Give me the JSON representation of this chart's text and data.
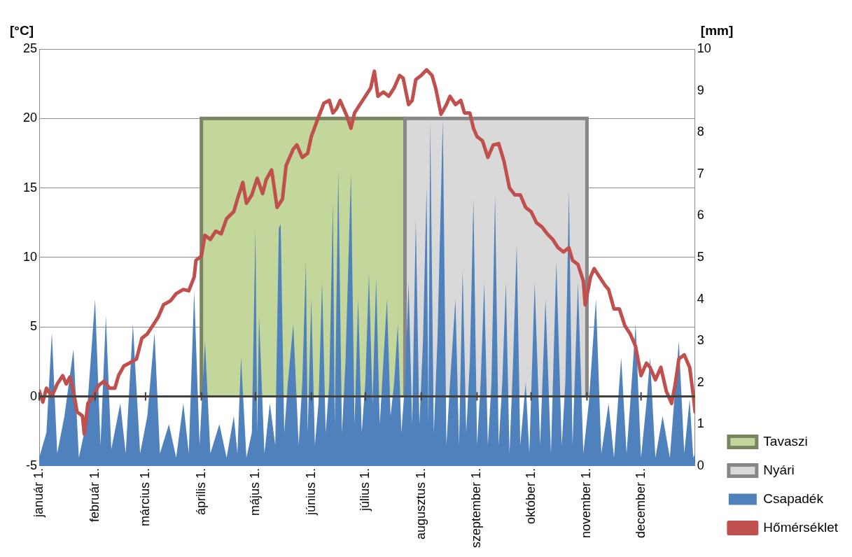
{
  "chart_data": {
    "type": "line",
    "ylabel": "[°C]",
    "y2label": "[mm]",
    "xlim": [
      "--01-01",
      "--12-31"
    ],
    "xticks": [
      {
        "value": "--01-01",
        "label": "január 1."
      },
      {
        "value": "--02-01",
        "label": "február 1."
      },
      {
        "value": "--03-01",
        "label": "március 1."
      },
      {
        "value": "--04-01",
        "label": "április 1."
      },
      {
        "value": "--05-01",
        "label": "május 1."
      },
      {
        "value": "--06-01",
        "label": "június 1."
      },
      {
        "value": "--07-01",
        "label": "július 1."
      },
      {
        "value": "--08-01",
        "label": "augusztus 1."
      },
      {
        "value": "--09-01",
        "label": "szeptember 1."
      },
      {
        "value": "--10-01",
        "label": "október 1."
      },
      {
        "value": "--11-01",
        "label": "november 1."
      },
      {
        "value": "--12-01",
        "label": "december 1."
      }
    ],
    "ylim": [
      -5,
      25
    ],
    "yticks": [
      -5,
      0,
      5,
      10,
      15,
      20,
      25
    ],
    "y2lim": [
      0,
      10
    ],
    "y2ticks": [
      0,
      1,
      2,
      3,
      4,
      5,
      6,
      7,
      8,
      9,
      10
    ],
    "grid": "y",
    "legend": "bottom right",
    "ref_lines": [
      {
        "axis": "y",
        "value": 0,
        "color": "#404040"
      }
    ],
    "series": [
      {
        "name": "Tavaszi",
        "type": "area",
        "color": "#c3d69b",
        "x": [
          "--04-01",
          "--04-01",
          "--07-23",
          "--07-23"
        ],
        "values": [
          0,
          20,
          20,
          0
        ]
      },
      {
        "name": "Nyári",
        "type": "area",
        "color": "#d9d9d9",
        "x": [
          "--07-23",
          "--07-23",
          "--11-01",
          "--11-01"
        ],
        "values": [
          0,
          20,
          20,
          0
        ]
      },
      {
        "name": "Csapadék",
        "type": "area",
        "axis": "y2",
        "color": "#4f81bd",
        "x": [
          "--01-01",
          "--01-05",
          "--01-08",
          "--01-11",
          "--01-15",
          "--01-20",
          "--01-23",
          "--01-27",
          "--02-01",
          "--02-04",
          "--02-07",
          "--02-10",
          "--02-15",
          "--02-18",
          "--02-22",
          "--02-26",
          "--03-02",
          "--03-06",
          "--03-09",
          "--03-14",
          "--03-18",
          "--03-22",
          "--03-25",
          "--03-28",
          "--03-31",
          "--04-03",
          "--04-06",
          "--04-11",
          "--04-15",
          "--04-19",
          "--04-21",
          "--04-23",
          "--04-26",
          "--04-29",
          "--05-01",
          "--05-02",
          "--05-03",
          "--05-06",
          "--05-09",
          "--05-12",
          "--05-14",
          "--05-15",
          "--05-17",
          "--05-19",
          "--05-22",
          "--05-25",
          "--05-27",
          "--05-29",
          "--05-30",
          "--06-01",
          "--06-03",
          "--06-05",
          "--06-07",
          "--06-09",
          "--06-11",
          "--06-13",
          "--06-14",
          "--06-16",
          "--06-18",
          "--06-20",
          "--06-23",
          "--06-25",
          "--06-27",
          "--06-29",
          "--07-01",
          "--07-03",
          "--07-05",
          "--07-07",
          "--07-09",
          "--07-11",
          "--07-13",
          "--07-15",
          "--07-17",
          "--07-19",
          "--07-21",
          "--07-23",
          "--07-25",
          "--07-27",
          "--07-29",
          "--07-31",
          "--08-02",
          "--08-04",
          "--08-05",
          "--08-06",
          "--08-08",
          "--08-10",
          "--08-13",
          "--08-15",
          "--08-17",
          "--08-20",
          "--08-22",
          "--08-24",
          "--08-26",
          "--08-28",
          "--08-30",
          "--09-01",
          "--09-03",
          "--09-05",
          "--09-07",
          "--09-09",
          "--09-11",
          "--09-13",
          "--09-15",
          "--09-17",
          "--09-19",
          "--09-21",
          "--09-23",
          "--09-25",
          "--09-28",
          "--09-30",
          "--10-03",
          "--10-06",
          "--10-09",
          "--10-12",
          "--10-15",
          "--10-18",
          "--10-20",
          "--10-22",
          "--10-24",
          "--10-27",
          "--10-30",
          "--11-02",
          "--11-06",
          "--11-09",
          "--11-13",
          "--11-16",
          "--11-20",
          "--11-23",
          "--11-25",
          "--11-28",
          "--12-01",
          "--12-04",
          "--12-06",
          "--12-09",
          "--12-13",
          "--12-17",
          "--12-22",
          "--12-25",
          "--12-28",
          "--12-30",
          "--12-31"
        ],
        "values": [
          0.2,
          0.8,
          3.2,
          0.3,
          1.2,
          2.8,
          0.2,
          1.0,
          4.0,
          0.5,
          3.6,
          0.4,
          1.5,
          0.3,
          3.4,
          0.3,
          1.2,
          3.2,
          0.3,
          1.0,
          0.2,
          1.5,
          0.3,
          4.2,
          0.5,
          3.0,
          0.3,
          1.0,
          0.2,
          1.2,
          0.3,
          2.6,
          0.2,
          0.8,
          5.7,
          0.8,
          3.6,
          0.3,
          1.5,
          0.5,
          5.7,
          5.8,
          0.8,
          2.0,
          3.4,
          0.5,
          2.0,
          4.9,
          0.8,
          4.0,
          0.5,
          1.5,
          4.4,
          0.8,
          2.0,
          6.3,
          1.0,
          7.1,
          0.8,
          2.5,
          7.0,
          1.0,
          4.0,
          0.8,
          2.0,
          4.6,
          1.5,
          4.5,
          1.0,
          2.5,
          4.0,
          1.2,
          2.0,
          3.4,
          0.8,
          2.0,
          4.4,
          1.0,
          5.9,
          1.0,
          3.0,
          6.7,
          1.0,
          8.3,
          0.8,
          3.0,
          8.3,
          0.5,
          2.0,
          4.0,
          0.5,
          4.7,
          0.8,
          2.5,
          6.4,
          0.5,
          2.0,
          4.4,
          0.5,
          2.0,
          6.5,
          0.5,
          2.0,
          4.4,
          0.3,
          2.5,
          5.3,
          0.5,
          2.0,
          0.3,
          4.4,
          0.5,
          4.0,
          0.3,
          4.9,
          0.5,
          2.0,
          6.6,
          0.5,
          4.4,
          0.3,
          1.5,
          4.0,
          0.3,
          1.5,
          0.2,
          2.6,
          0.3,
          1.5,
          3.4,
          0.2,
          1.5,
          2.6,
          0.2,
          1.2,
          0.2,
          3.0,
          0.3,
          1.6,
          0.2,
          0.3
        ]
      },
      {
        "name": "Hőmérséklet",
        "type": "line",
        "color": "#c0504d",
        "x": [
          "--01-01",
          "--01-03",
          "--01-05",
          "--01-08",
          "--01-11",
          "--01-14",
          "--01-16",
          "--01-18",
          "--01-20",
          "--01-22",
          "--01-25",
          "--01-26",
          "--01-28",
          "--01-31",
          "--02-03",
          "--02-06",
          "--02-09",
          "--02-12",
          "--02-14",
          "--02-17",
          "--02-20",
          "--02-24",
          "--02-27",
          "--03-02",
          "--03-05",
          "--03-08",
          "--03-11",
          "--03-15",
          "--03-18",
          "--03-22",
          "--03-25",
          "--03-28",
          "--03-29",
          "--04-01",
          "--04-03",
          "--04-06",
          "--04-09",
          "--04-12",
          "--04-15",
          "--04-19",
          "--04-21",
          "--04-24",
          "--04-26",
          "--04-29",
          "--05-02",
          "--05-05",
          "--05-07",
          "--05-10",
          "--05-13",
          "--05-16",
          "--05-18",
          "--05-22",
          "--05-24",
          "--05-27",
          "--05-30",
          "--06-01",
          "--06-05",
          "--06-08",
          "--06-11",
          "--06-13",
          "--06-15",
          "--06-17",
          "--06-21",
          "--06-23",
          "--06-25",
          "--06-28",
          "--07-01",
          "--07-04",
          "--07-06",
          "--07-08",
          "--07-11",
          "--07-14",
          "--07-17",
          "--07-20",
          "--07-22",
          "--07-25",
          "--07-27",
          "--07-29",
          "--08-01",
          "--08-04",
          "--08-07",
          "--08-09",
          "--08-12",
          "--08-15",
          "--08-17",
          "--08-20",
          "--08-23",
          "--08-25",
          "--08-28",
          "--08-30",
          "--09-01",
          "--09-04",
          "--09-07",
          "--09-10",
          "--09-13",
          "--09-16",
          "--09-19",
          "--09-22",
          "--09-25",
          "--09-28",
          "--10-01",
          "--10-04",
          "--10-07",
          "--10-10",
          "--10-13",
          "--10-16",
          "--10-19",
          "--10-22",
          "--10-24",
          "--10-27",
          "--10-30",
          "--10-31",
          "--11-03",
          "--11-05",
          "--11-08",
          "--11-11",
          "--11-13",
          "--11-16",
          "--11-19",
          "--11-22",
          "--11-25",
          "--11-28",
          "--12-01",
          "--12-04",
          "--12-06",
          "--12-09",
          "--12-12",
          "--12-15",
          "--12-18",
          "--12-20",
          "--12-22",
          "--12-25",
          "--12-28",
          "--12-30",
          "--12-31"
        ],
        "values": [
          0.4,
          -0.4,
          0.6,
          0,
          0.9,
          1.5,
          0.9,
          1.4,
          0.4,
          -1.1,
          -1.4,
          -2.7,
          -0.5,
          0,
          0.8,
          1.1,
          0.6,
          0.6,
          1.5,
          2.2,
          2.4,
          2.7,
          4.2,
          4.5,
          5.1,
          5.7,
          6.6,
          6.9,
          7.4,
          7.7,
          7.6,
          8.6,
          9.8,
          10.1,
          11.6,
          11.3,
          11.9,
          11.7,
          12.8,
          13.3,
          14.2,
          15.4,
          13.9,
          14.5,
          15.7,
          14.6,
          15.6,
          16.3,
          13.6,
          14.2,
          16.6,
          17.8,
          18.1,
          17.2,
          17.5,
          18.7,
          20.1,
          21.1,
          21.3,
          20.4,
          20.7,
          21.3,
          20.1,
          19.3,
          20.4,
          21.0,
          21.6,
          22.2,
          23.4,
          21.6,
          21.9,
          21.6,
          22.2,
          23.1,
          22.9,
          21.0,
          21.3,
          22.8,
          23.1,
          23.5,
          23.1,
          22.2,
          20.3,
          21.0,
          21.6,
          21.0,
          21.3,
          20.4,
          20.4,
          19.3,
          18.7,
          18.4,
          17.2,
          18.1,
          18.2,
          16.9,
          15.0,
          14.5,
          14.5,
          13.6,
          13.3,
          12.5,
          12.2,
          11.7,
          11.3,
          10.7,
          10.4,
          10.7,
          9.8,
          9.5,
          8.3,
          6.6,
          8.6,
          9.2,
          8.6,
          8.0,
          7.7,
          6.3,
          6.3,
          5.1,
          4.5,
          3.6,
          1.5,
          2.4,
          2.1,
          1.2,
          2.1,
          0.4,
          -0.5,
          0.9,
          2.7,
          3.0,
          2.1,
          0.1,
          -1.1
        ]
      }
    ]
  }
}
